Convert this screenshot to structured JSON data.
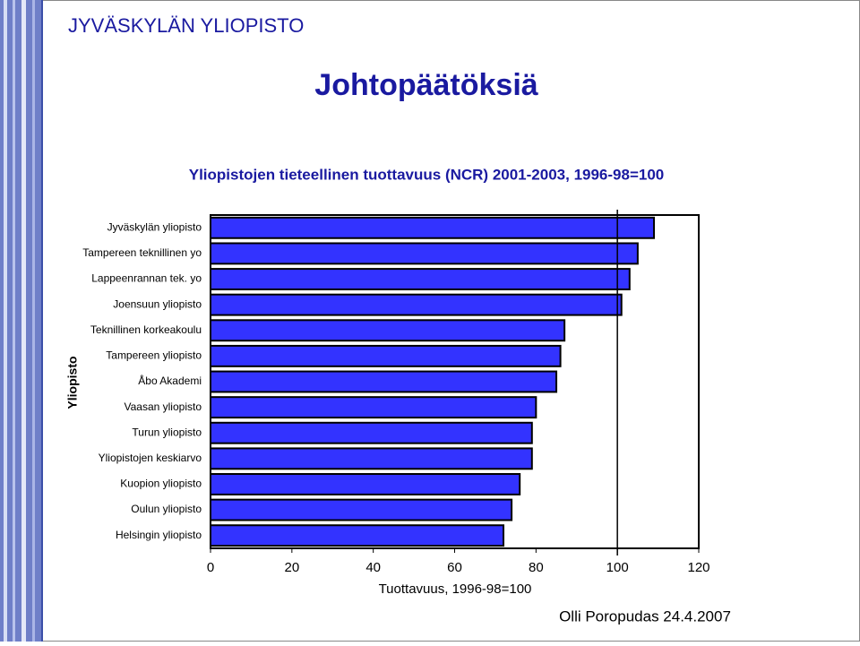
{
  "header": "JYVÄSKYLÄN YLIOPISTO",
  "title": "Johtopäätöksiä",
  "footer": "Olli Poropudas 24.4.2007",
  "chart_data": {
    "type": "hbar",
    "title": "Yliopistojen tieteellinen tuottavuus (NCR) 2001-2003, 1996-98=100",
    "x_label": "Tuottavuus, 1996-98=100",
    "y_label": "Yliopisto",
    "categories": [
      "Jyväskylän yliopisto",
      "Tampereen teknillinen yo",
      "Lappeenrannan tek. yo",
      "Joensuun yliopisto",
      "Teknillinen korkeakoulu",
      "Tampereen yliopisto",
      "Åbo Akademi",
      "Vaasan yliopisto",
      "Turun yliopisto",
      "Yliopistojen keskiarvo",
      "Kuopion yliopisto",
      "Oulun yliopisto",
      "Helsingin yliopisto"
    ],
    "values": [
      109,
      105,
      103,
      101,
      87,
      86,
      85,
      80,
      79,
      79,
      76,
      74,
      72
    ],
    "color": "#3333ff",
    "reference_line": 100,
    "xlim": [
      0,
      120
    ],
    "xticks": [
      0,
      20,
      40,
      60,
      80,
      100,
      120
    ]
  }
}
